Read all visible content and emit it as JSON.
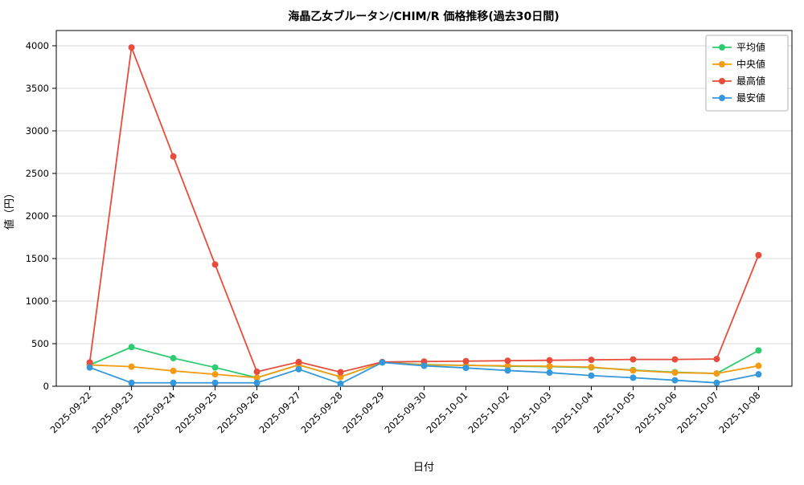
{
  "chart_data": {
    "type": "line",
    "title": "海晶乙女ブルータン/CHIM/R 価格推移(過去30日間)",
    "xlabel": "日付",
    "ylabel": "値（円）",
    "grid": true,
    "legend_position": "top-right",
    "ylim": [
      0,
      4000
    ],
    "yticks": [
      0,
      500,
      1000,
      1500,
      2000,
      2500,
      3000,
      3500,
      4000
    ],
    "x": [
      "2025-09-22",
      "2025-09-23",
      "2025-09-24",
      "2025-09-25",
      "2025-09-26",
      "2025-09-27",
      "2025-09-28",
      "2025-09-29",
      "2025-09-30",
      "2025-10-01",
      "2025-10-02",
      "2025-10-03",
      "2025-10-04",
      "2025-10-05",
      "2025-10-06",
      "2025-10-07",
      "2025-10-08"
    ],
    "series": [
      {
        "key": "average",
        "name": "平均値",
        "color": "#2ecc71",
        "values": [
          250,
          460,
          330,
          220,
          100,
          250,
          110,
          280,
          255,
          245,
          235,
          230,
          220,
          190,
          165,
          150,
          420
        ]
      },
      {
        "key": "median",
        "name": "中央値",
        "color": "#f39c12",
        "values": [
          250,
          230,
          180,
          140,
          100,
          250,
          110,
          280,
          250,
          245,
          240,
          235,
          225,
          185,
          160,
          150,
          240
        ]
      },
      {
        "key": "max",
        "name": "最高値",
        "color": "#e74c3c",
        "values": [
          280,
          3980,
          2700,
          1430,
          170,
          285,
          165,
          285,
          290,
          295,
          300,
          305,
          310,
          315,
          315,
          320,
          1540
        ]
      },
      {
        "key": "min",
        "name": "最安値",
        "color": "#3498db",
        "values": [
          220,
          40,
          40,
          40,
          40,
          200,
          30,
          280,
          240,
          215,
          185,
          160,
          125,
          100,
          70,
          40,
          140
        ]
      }
    ]
  }
}
